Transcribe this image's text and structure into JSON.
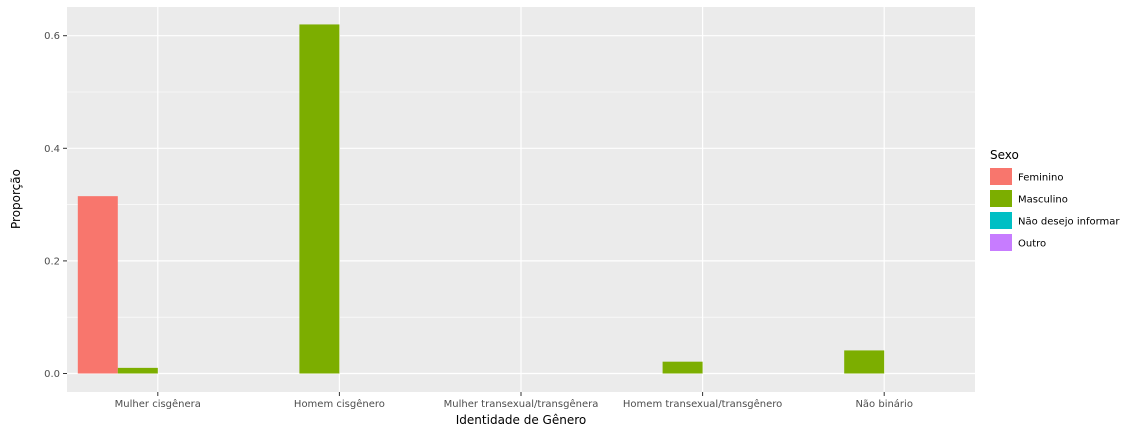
{
  "chart_data": {
    "type": "bar",
    "title": "",
    "xlabel": "Identidade de Gênero",
    "ylabel": "Proporção",
    "categories": [
      "Mulher cisgênera",
      "Homem cisgênero",
      "Mulher transexual/transgênera",
      "Homem transexual/transgênero",
      "Não binário"
    ],
    "ylim": [
      0,
      0.66
    ],
    "yticks": [
      0.0,
      0.2,
      0.4,
      0.6
    ],
    "ytick_labels": [
      "0.0",
      "0.2",
      "0.4",
      "0.6"
    ],
    "grid": true,
    "legend": {
      "title": "Sexo",
      "position": "right"
    },
    "series": [
      {
        "name": "Feminino",
        "color": "#F8766D",
        "values": [
          0.315,
          0,
          0,
          0,
          0
        ]
      },
      {
        "name": "Masculino",
        "color": "#7CAE00",
        "values": [
          0.01,
          0.62,
          0,
          0.021,
          0.041
        ]
      },
      {
        "name": "Não desejo informar",
        "color": "#00BFC4",
        "values": [
          0,
          0,
          0,
          0,
          0
        ]
      },
      {
        "name": "Outro",
        "color": "#C77CFF",
        "values": [
          0,
          0,
          0,
          0,
          0
        ]
      }
    ],
    "panel_background": "#EBEBEB",
    "grid_color": "#FFFFFF"
  }
}
